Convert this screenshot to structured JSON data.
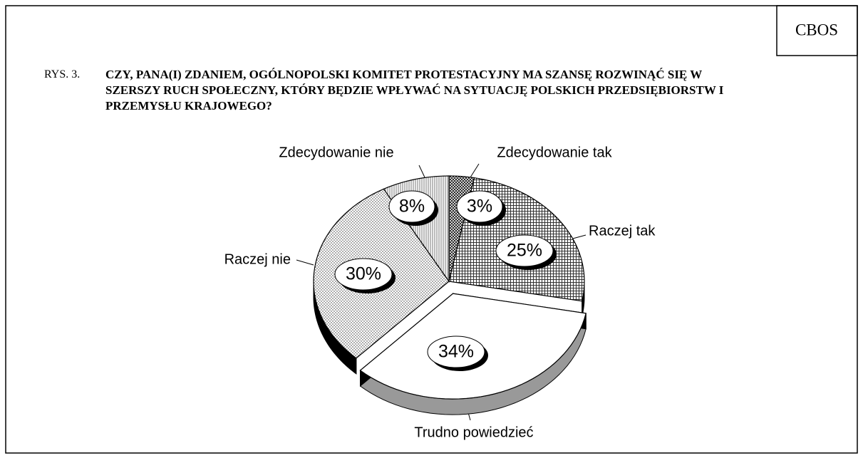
{
  "chart_data": {
    "type": "pie",
    "source": "CBOS",
    "figure_label": "RYS. 3.",
    "title": "CZY, PANA(I) ZDANIEM, OGÓLNOPOLSKI KOMITET PROTESTACYJNY MA SZANSĘ ROZWINĄĆ SIĘ W SZERSZY RUCH SPOŁECZNY, KTÓRY BĘDZIE WPŁYWAĆ NA SYTUACJĘ POLSKICH PRZEDSIĘBIORSTW I PRZEMYSŁU KRAJOWEGO?",
    "categories": [
      "Zdecydowanie tak",
      "Raczej tak",
      "Trudno powiedzieć",
      "Raczej nie",
      "Zdecydowanie nie"
    ],
    "values": [
      3,
      25,
      34,
      30,
      8
    ],
    "value_labels": [
      "3%",
      "25%",
      "34%",
      "30%",
      "8%"
    ],
    "colors": [
      "#9a9a9a",
      "#b4b4b4",
      "#ffffff",
      "#d2d2d2",
      "#e6e6e6"
    ],
    "exploded": "Trudno powiedzieć"
  }
}
